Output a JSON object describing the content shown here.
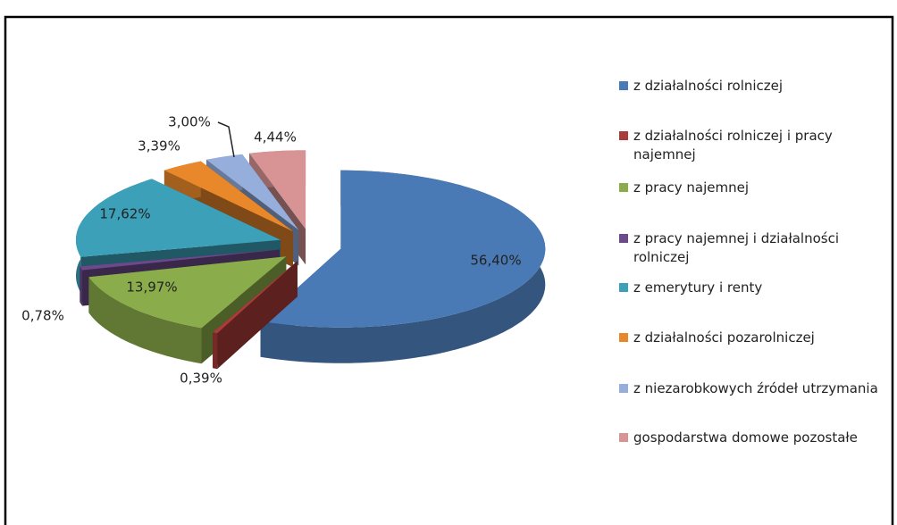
{
  "chart_data": {
    "type": "pie",
    "categories": [
      "z działalności rolniczej",
      "z działalności rolniczej i pracy najemnej",
      "z pracy najemnej",
      "z pracy najemnej i działalności rolniczej",
      "z emerytury i renty",
      "z działalności pozarolniczej",
      "z niezarobkowych źródeł utrzymania",
      "gospodarstwa domowe pozostałe"
    ],
    "values": [
      56.4,
      0.39,
      13.97,
      0.78,
      17.62,
      3.39,
      3.0,
      4.44
    ],
    "value_labels": [
      "56,40%",
      "0,39%",
      "13,97%",
      "0,78%",
      "17,62%",
      "3,39%",
      "3,00%",
      "4,44%"
    ],
    "colors": [
      "#4a7ab5",
      "#a83c3a",
      "#8aac4a",
      "#6a4a8a",
      "#3ca0b8",
      "#e8882a",
      "#96aedb",
      "#d89494"
    ],
    "legend": "right",
    "three_d": true
  }
}
